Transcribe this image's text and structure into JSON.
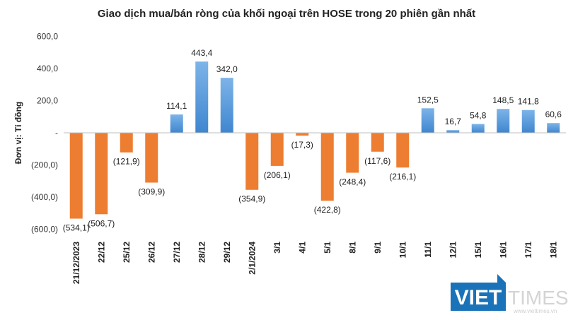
{
  "chart_data": {
    "type": "bar",
    "title": "Giao dịch mua/bán ròng của khối ngoại trên HOSE trong 20 phiên gần nhất",
    "ylabel": "Đơn vị: Tỉ đồng",
    "xlabel": "",
    "ylim": [
      -600,
      600
    ],
    "yticks": [
      -600,
      -400,
      -200,
      0,
      200,
      400,
      600
    ],
    "ytick_labels": [
      "(600,0)",
      "(400,0)",
      "(200,0)",
      "-",
      "200,0",
      "400,0",
      "600,0"
    ],
    "categories": [
      "21/12/2023",
      "22/12",
      "25/12",
      "26/12",
      "27/12",
      "28/12",
      "29/12",
      "2/1/2024",
      "3/1",
      "4/1",
      "5/1",
      "8/1",
      "9/1",
      "10/1",
      "11/1",
      "12/1",
      "15/1",
      "16/1",
      "17/1",
      "18/1"
    ],
    "values": [
      -534.1,
      -506.7,
      -121.9,
      -309.9,
      114.1,
      443.4,
      342.0,
      -354.9,
      -206.1,
      -17.3,
      -422.8,
      -248.4,
      -117.6,
      -216.1,
      152.5,
      16.7,
      54.8,
      148.5,
      141.8,
      60.6
    ],
    "value_labels": [
      "(534,1)",
      "(506,7)",
      "(121,9)",
      "(309,9)",
      "114,1",
      "443,4",
      "342,0",
      "(354,9)",
      "(206,1)",
      "(17,3)",
      "(422,8)",
      "(248,4)",
      "(117,6)",
      "(216,1)",
      "152,5",
      "16,7",
      "54,8",
      "148,5",
      "141,8",
      "60,6"
    ],
    "colors": {
      "positive": "#4a8fd6",
      "positive_light": "#7db4e8",
      "negative": "#ed7d31",
      "axis": "#bfbfbf"
    },
    "grid": false
  },
  "watermark": {
    "brand_bold": "VIET",
    "brand_light": "TIMES",
    "small_text": "www.viettimes.vn",
    "badge_color": "#1a73b8"
  }
}
